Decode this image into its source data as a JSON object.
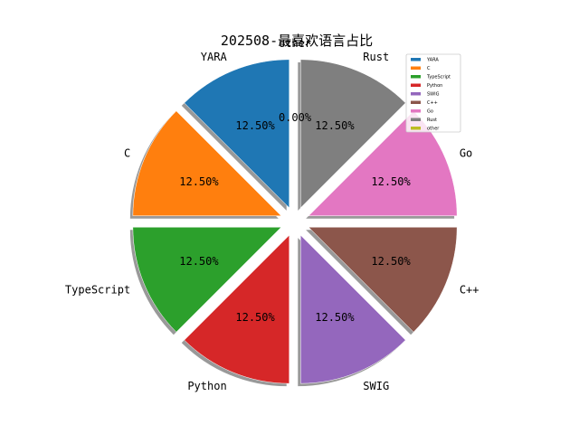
{
  "chart_data": {
    "type": "pie",
    "title": "202508-最喜欢语言占比",
    "categories": [
      "YARA",
      "C",
      "TypeScript",
      "Python",
      "SWIG",
      "C++",
      "Go",
      "Rust",
      "other"
    ],
    "values": [
      12.5,
      12.5,
      12.5,
      12.5,
      12.5,
      12.5,
      12.5,
      12.5,
      0.0
    ],
    "percent_labels": [
      "12.50%",
      "12.50%",
      "12.50%",
      "12.50%",
      "12.50%",
      "12.50%",
      "12.50%",
      "12.50%",
      "0.00%"
    ],
    "colors": [
      "#1f77b4",
      "#ff7f0e",
      "#2ca02c",
      "#d62728",
      "#9467bd",
      "#8c564b",
      "#e377c2",
      "#7f7f7f",
      "#bcbd22"
    ],
    "exploded": true,
    "shadow": true,
    "start_angle_deg": 90,
    "counterclockwise": true,
    "legend_position": "top-right"
  }
}
